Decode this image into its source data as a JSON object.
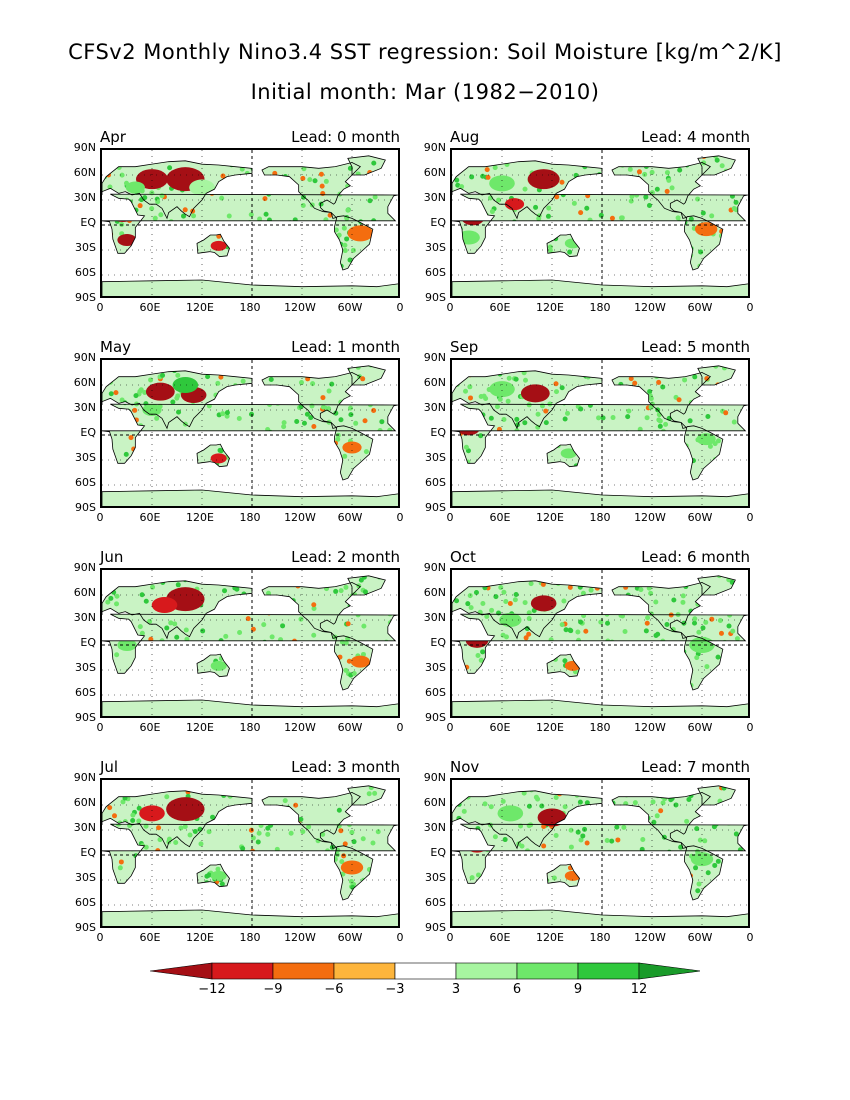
{
  "title": "CFSv2 Monthly Nino3.4 SST regression: Soil Moisture [kg/m^2/K]",
  "subtitle": "Initial month: Mar (1982−2010)",
  "panels": [
    {
      "month": "Apr",
      "lead": "Lead: 0 month"
    },
    {
      "month": "Aug",
      "lead": "Lead: 4 month"
    },
    {
      "month": "May",
      "lead": "Lead: 1 month"
    },
    {
      "month": "Sep",
      "lead": "Lead: 5 month"
    },
    {
      "month": "Jun",
      "lead": "Lead: 2 month"
    },
    {
      "month": "Oct",
      "lead": "Lead: 6 month"
    },
    {
      "month": "Jul",
      "lead": "Lead: 3 month"
    },
    {
      "month": "Nov",
      "lead": "Lead: 7 month"
    }
  ],
  "axes": {
    "lat_labels": [
      "90N",
      "60N",
      "30N",
      "EQ",
      "30S",
      "60S",
      "90S"
    ],
    "lon_labels": [
      "0",
      "60E",
      "120E",
      "180",
      "120W",
      "60W",
      "0"
    ]
  },
  "colorbar": {
    "labels": [
      "−12",
      "−9",
      "−6",
      "−3",
      "3",
      "6",
      "9",
      "12"
    ],
    "colors": [
      "#a50f15",
      "#d7191c",
      "#f46d0f",
      "#fdb53c",
      "#ffffff",
      "#a7f5a0",
      "#6ee86a",
      "#2fc83c",
      "#1a9b2a"
    ],
    "arrow_left_color": "#a50f15",
    "arrow_right_color": "#1a9b2a"
  }
}
